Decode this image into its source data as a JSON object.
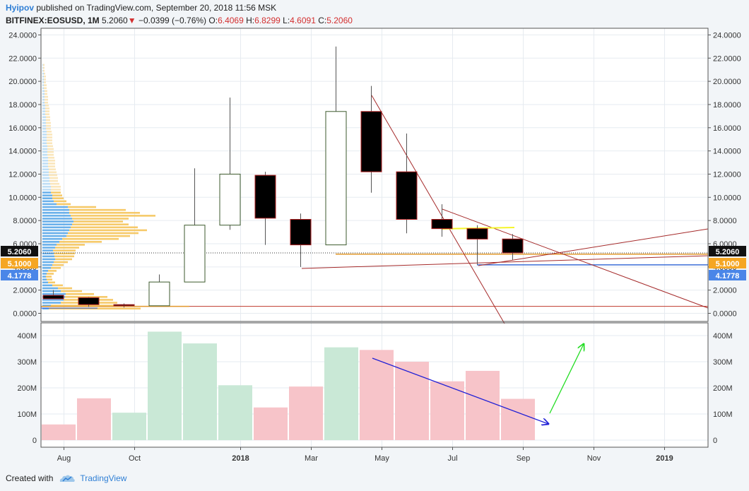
{
  "header": {
    "author": "Hyipov",
    "published": "published on TradingView.com, September 20, 2018 11:56 MSK",
    "symbol": "BITFINEX:EOSUSD, 1M",
    "last": "5.2060",
    "change_arrow": "▼",
    "change": "−0.0399 (−0.76%)",
    "open_label": "O:",
    "open": "6.4069",
    "high_label": "H:",
    "high": "6.8299",
    "low_label": "L:",
    "low": "4.6091",
    "close_label": "C:",
    "close": "5.2060"
  },
  "footer": {
    "created": "Created with",
    "brand": "TradingView",
    "logo_icon": "tradingview-cloud-icon"
  },
  "colors": {
    "bull_body": "#ffffff",
    "bull_border": "#3c5a2c",
    "bear_body": "#000000",
    "bear_border": "#b22222",
    "vol_up": "#c9e8d6",
    "vol_down": "#f7c4c9",
    "vp_blue": "#5aa7e8",
    "vp_blue_light": "#b8daf4",
    "vp_gold": "#f5c45a",
    "vp_gold_light": "#fae3b4",
    "trend_line": "#a52a2a",
    "support_blue": "#3c6fd8",
    "arrow_blue": "#1f1fd6",
    "arrow_green": "#22dd22",
    "yellow_line": "#f5f52a",
    "last_price_bg": "#111111",
    "orange_badge": "#f5a623",
    "blue_badge": "#4a86e8"
  },
  "chart_data": {
    "type": "candlestick",
    "price_ylim": [
      -0.6,
      24.4
    ],
    "price_ticks": [
      "0.0000",
      "2.0000",
      "4.0000",
      "6.0000",
      "8.0000",
      "10.0000",
      "12.0000",
      "14.0000",
      "16.0000",
      "18.0000",
      "20.0000",
      "22.0000",
      "24.0000"
    ],
    "volume_ticks": [
      "0",
      "100M",
      "200M",
      "300M",
      "400M"
    ],
    "x_labels": [
      {
        "text": "Aug",
        "i": 0.3,
        "bold": false
      },
      {
        "text": "Oct",
        "i": 2.3,
        "bold": false
      },
      {
        "text": "2018",
        "i": 5.3,
        "bold": true
      },
      {
        "text": "Mar",
        "i": 7.3,
        "bold": false
      },
      {
        "text": "May",
        "i": 9.3,
        "bold": false
      },
      {
        "text": "Jul",
        "i": 11.3,
        "bold": false
      },
      {
        "text": "Sep",
        "i": 13.3,
        "bold": false
      },
      {
        "text": "Nov",
        "i": 15.3,
        "bold": false
      },
      {
        "text": "2019",
        "i": 17.3,
        "bold": true
      }
    ],
    "candles": [
      {
        "t": "2017-07",
        "o": 1.55,
        "h": 2.0,
        "l": 1.3,
        "c": 1.25
      },
      {
        "t": "2017-08",
        "o": 1.35,
        "h": 1.4,
        "l": 0.55,
        "c": 0.75
      },
      {
        "t": "2017-09",
        "o": 0.75,
        "h": 0.85,
        "l": 0.5,
        "c": 0.65
      },
      {
        "t": "2017-10",
        "o": 0.65,
        "h": 3.35,
        "l": 0.65,
        "c": 2.7
      },
      {
        "t": "2017-11",
        "o": 2.7,
        "h": 12.5,
        "l": 2.7,
        "c": 7.6
      },
      {
        "t": "2017-12",
        "o": 7.6,
        "h": 18.6,
        "l": 7.2,
        "c": 12.0
      },
      {
        "t": "2018-01",
        "o": 11.9,
        "h": 12.2,
        "l": 5.9,
        "c": 8.2
      },
      {
        "t": "2018-02",
        "o": 8.1,
        "h": 8.6,
        "l": 4.0,
        "c": 5.9
      },
      {
        "t": "2018-03",
        "o": 5.9,
        "h": 23.0,
        "l": 5.9,
        "c": 17.4
      },
      {
        "t": "2018-04",
        "o": 17.4,
        "h": 19.6,
        "l": 10.4,
        "c": 12.2
      },
      {
        "t": "2018-05",
        "o": 12.2,
        "h": 15.5,
        "l": 6.9,
        "c": 8.1
      },
      {
        "t": "2018-06",
        "o": 8.1,
        "h": 9.4,
        "l": 6.6,
        "c": 7.3
      },
      {
        "t": "2018-07",
        "o": 7.3,
        "h": 7.6,
        "l": 4.2,
        "c": 6.4
      },
      {
        "t": "2018-08",
        "o": 6.41,
        "h": 6.83,
        "l": 4.61,
        "c": 5.21
      }
    ],
    "volume": [
      {
        "t": "2017-06",
        "v": 60,
        "up": false
      },
      {
        "t": "2017-07",
        "v": 160,
        "up": false
      },
      {
        "t": "2017-08",
        "v": 105,
        "up": true
      },
      {
        "t": "2017-09",
        "v": 415,
        "up": true
      },
      {
        "t": "2017-10",
        "v": 370,
        "up": true
      },
      {
        "t": "2017-11",
        "v": 210,
        "up": true
      },
      {
        "t": "2017-12",
        "v": 125,
        "up": false
      },
      {
        "t": "2018-01",
        "v": 205,
        "up": false
      },
      {
        "t": "2018-02",
        "v": 355,
        "up": true
      },
      {
        "t": "2018-03",
        "v": 345,
        "up": false
      },
      {
        "t": "2018-04",
        "v": 300,
        "up": false
      },
      {
        "t": "2018-05",
        "v": 225,
        "up": false
      },
      {
        "t": "2018-06",
        "v": 265,
        "up": false
      },
      {
        "t": "2018-07",
        "v": 158,
        "up": false
      }
    ],
    "price_labels": [
      {
        "value": 5.206,
        "text": "5.2060",
        "style": "last"
      },
      {
        "value": 5.1,
        "text": "5.1000",
        "style": "orange"
      },
      {
        "value": 4.1778,
        "text": "4.1778",
        "style": "blue"
      }
    ],
    "volume_profile": {
      "bins_from": 0.4,
      "bin_size": 0.25,
      "blue": [
        9,
        12,
        26,
        30,
        32,
        33,
        26,
        22,
        14,
        8,
        6,
        5,
        6,
        8,
        12,
        14,
        16,
        18,
        17,
        16,
        15,
        18,
        20,
        24,
        28,
        34,
        36,
        38,
        40,
        42,
        44,
        42,
        40,
        38,
        38,
        36,
        20,
        16,
        14,
        14,
        12,
        12,
        12,
        11,
        10,
        10,
        9,
        9,
        9,
        8,
        8,
        8,
        8,
        7,
        7,
        7,
        7,
        6,
        6,
        6,
        6,
        6,
        5,
        5,
        5,
        5,
        5,
        4,
        4,
        4,
        4,
        3,
        3,
        3,
        3,
        3,
        2,
        2,
        2,
        2,
        2,
        2,
        1,
        1,
        1,
        1
      ],
      "gold": [
        130,
        110,
        80,
        70,
        60,
        40,
        30,
        20,
        15,
        10,
        8,
        8,
        10,
        12,
        14,
        16,
        20,
        24,
        28,
        30,
        32,
        34,
        40,
        60,
        80,
        90,
        100,
        110,
        95,
        80,
        70,
        80,
        120,
        100,
        80,
        40,
        20,
        18,
        16,
        14,
        14,
        14,
        14,
        13,
        12,
        12,
        12,
        11,
        10,
        10,
        10,
        10,
        9,
        9,
        9,
        9,
        8,
        8,
        8,
        8,
        8,
        7,
        7,
        7,
        7,
        6,
        6,
        6,
        6,
        6,
        5,
        5,
        5,
        5,
        4,
        4,
        4,
        4,
        3,
        3,
        3,
        2,
        2,
        2,
        2,
        2
      ]
    }
  }
}
